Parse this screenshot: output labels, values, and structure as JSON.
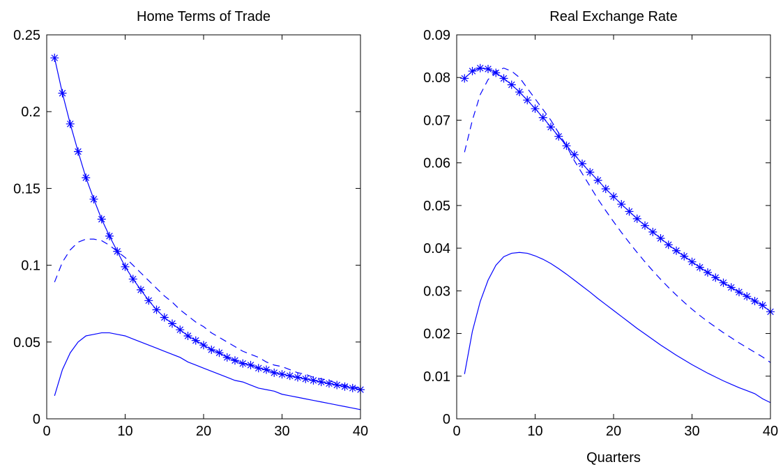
{
  "chart_data": [
    {
      "type": "line",
      "title": "Home Terms of Trade",
      "xlabel": "",
      "ylabel": "",
      "xlim": [
        0,
        40
      ],
      "ylim": [
        0,
        0.25
      ],
      "xticks": [
        0,
        10,
        20,
        30,
        40
      ],
      "yticks": [
        0,
        0.05,
        0.1,
        0.15,
        0.2,
        0.25
      ],
      "xtick_labels": [
        "0",
        "10",
        "20",
        "30",
        "40"
      ],
      "ytick_labels": [
        "0",
        "0.05",
        "0.1",
        "0.15",
        "0.2",
        "0.25"
      ],
      "grid": false,
      "color": "#0000ff",
      "series": [
        {
          "style": "solid-star",
          "x": [
            1,
            2,
            3,
            4,
            5,
            6,
            7,
            8,
            9,
            10,
            11,
            12,
            13,
            14,
            15,
            16,
            17,
            18,
            19,
            20,
            21,
            22,
            23,
            24,
            25,
            26,
            27,
            28,
            29,
            30,
            31,
            32,
            33,
            34,
            35,
            36,
            37,
            38,
            39,
            40
          ],
          "values": [
            0.235,
            0.212,
            0.192,
            0.174,
            0.157,
            0.143,
            0.13,
            0.119,
            0.109,
            0.099,
            0.091,
            0.084,
            0.077,
            0.071,
            0.066,
            0.062,
            0.058,
            0.054,
            0.051,
            0.048,
            0.045,
            0.043,
            0.04,
            0.038,
            0.036,
            0.035,
            0.033,
            0.032,
            0.03,
            0.029,
            0.028,
            0.027,
            0.026,
            0.025,
            0.024,
            0.023,
            0.022,
            0.021,
            0.02,
            0.019
          ]
        },
        {
          "style": "dashed",
          "x": [
            1,
            2,
            3,
            4,
            5,
            6,
            7,
            8,
            9,
            10,
            11,
            12,
            13,
            14,
            15,
            16,
            17,
            18,
            19,
            20,
            21,
            22,
            23,
            24,
            25,
            26,
            27,
            28,
            29,
            30,
            31,
            32,
            33,
            34,
            35,
            36,
            37,
            38,
            39,
            40
          ],
          "values": [
            0.089,
            0.102,
            0.11,
            0.115,
            0.117,
            0.117,
            0.116,
            0.113,
            0.109,
            0.105,
            0.1,
            0.095,
            0.09,
            0.085,
            0.08,
            0.076,
            0.071,
            0.067,
            0.063,
            0.06,
            0.056,
            0.053,
            0.05,
            0.047,
            0.044,
            0.042,
            0.04,
            0.037,
            0.035,
            0.034,
            0.032,
            0.03,
            0.029,
            0.027,
            0.026,
            0.025,
            0.023,
            0.022,
            0.021,
            0.02
          ]
        },
        {
          "style": "solid",
          "x": [
            1,
            2,
            3,
            4,
            5,
            6,
            7,
            8,
            9,
            10,
            11,
            12,
            13,
            14,
            15,
            16,
            17,
            18,
            19,
            20,
            21,
            22,
            23,
            24,
            25,
            26,
            27,
            28,
            29,
            30,
            31,
            32,
            33,
            34,
            35,
            36,
            37,
            38,
            39,
            40
          ],
          "values": [
            0.015,
            0.032,
            0.043,
            0.05,
            0.054,
            0.055,
            0.056,
            0.056,
            0.055,
            0.054,
            0.052,
            0.05,
            0.048,
            0.046,
            0.044,
            0.042,
            0.04,
            0.037,
            0.035,
            0.033,
            0.031,
            0.029,
            0.027,
            0.025,
            0.024,
            0.022,
            0.02,
            0.019,
            0.018,
            0.016,
            0.015,
            0.014,
            0.013,
            0.012,
            0.011,
            0.01,
            0.009,
            0.008,
            0.007,
            0.006
          ]
        }
      ]
    },
    {
      "type": "line",
      "title": "Real Exchange Rate",
      "xlabel": "Quarters",
      "ylabel": "",
      "xlim": [
        0,
        40
      ],
      "ylim": [
        0,
        0.09
      ],
      "xticks": [
        0,
        10,
        20,
        30,
        40
      ],
      "yticks": [
        0,
        0.01,
        0.02,
        0.03,
        0.04,
        0.05,
        0.06,
        0.07,
        0.08,
        0.09
      ],
      "xtick_labels": [
        "0",
        "10",
        "20",
        "30",
        "40"
      ],
      "ytick_labels": [
        "0",
        "0.01",
        "0.02",
        "0.03",
        "0.04",
        "0.05",
        "0.06",
        "0.07",
        "0.08",
        "0.09"
      ],
      "grid": false,
      "color": "#0000ff",
      "series": [
        {
          "style": "solid-star",
          "x": [
            1,
            2,
            3,
            4,
            5,
            6,
            7,
            8,
            9,
            10,
            11,
            12,
            13,
            14,
            15,
            16,
            17,
            18,
            19,
            20,
            21,
            22,
            23,
            24,
            25,
            26,
            27,
            28,
            29,
            30,
            31,
            32,
            33,
            34,
            35,
            36,
            37,
            38,
            39,
            40
          ],
          "values": [
            0.0798,
            0.0815,
            0.0822,
            0.082,
            0.0811,
            0.0798,
            0.0783,
            0.0766,
            0.0747,
            0.0727,
            0.0706,
            0.0684,
            0.0662,
            0.064,
            0.0619,
            0.0598,
            0.0578,
            0.0559,
            0.0539,
            0.0521,
            0.0503,
            0.0486,
            0.0469,
            0.0453,
            0.0438,
            0.0423,
            0.0408,
            0.0394,
            0.0381,
            0.0368,
            0.0355,
            0.0343,
            0.0331,
            0.0319,
            0.0308,
            0.0297,
            0.0287,
            0.0276,
            0.0266,
            0.0251
          ]
        },
        {
          "style": "dashed",
          "x": [
            1,
            2,
            3,
            4,
            5,
            6,
            7,
            8,
            9,
            10,
            11,
            12,
            13,
            14,
            15,
            16,
            17,
            18,
            19,
            20,
            21,
            22,
            23,
            24,
            25,
            26,
            27,
            28,
            29,
            30,
            31,
            32,
            33,
            34,
            35,
            36,
            37,
            38,
            39,
            40
          ],
          "values": [
            0.0625,
            0.07,
            0.076,
            0.0795,
            0.0815,
            0.0822,
            0.0815,
            0.08,
            0.0775,
            0.075,
            0.0725,
            0.07,
            0.067,
            0.064,
            0.0605,
            0.0575,
            0.0545,
            0.0515,
            0.0488,
            0.0462,
            0.0437,
            0.0413,
            0.039,
            0.0368,
            0.0347,
            0.0327,
            0.0308,
            0.029,
            0.0273,
            0.0257,
            0.0242,
            0.0228,
            0.0215,
            0.0202,
            0.019,
            0.0178,
            0.0167,
            0.0156,
            0.0145,
            0.0132
          ]
        },
        {
          "style": "solid",
          "x": [
            1,
            2,
            3,
            4,
            5,
            6,
            7,
            8,
            9,
            10,
            11,
            12,
            13,
            14,
            15,
            16,
            17,
            18,
            19,
            20,
            21,
            22,
            23,
            24,
            25,
            26,
            27,
            28,
            29,
            30,
            31,
            32,
            33,
            34,
            35,
            36,
            37,
            38,
            39,
            40
          ],
          "values": [
            0.0105,
            0.0205,
            0.0275,
            0.0325,
            0.036,
            0.038,
            0.0388,
            0.039,
            0.0388,
            0.0382,
            0.0374,
            0.0364,
            0.0352,
            0.0339,
            0.0325,
            0.0311,
            0.0297,
            0.0282,
            0.0268,
            0.0254,
            0.024,
            0.0226,
            0.0212,
            0.0199,
            0.0186,
            0.0173,
            0.0161,
            0.0149,
            0.0138,
            0.0127,
            0.0117,
            0.0107,
            0.0098,
            0.0089,
            0.0081,
            0.0073,
            0.0066,
            0.0059,
            0.0047,
            0.0038
          ]
        }
      ]
    }
  ]
}
